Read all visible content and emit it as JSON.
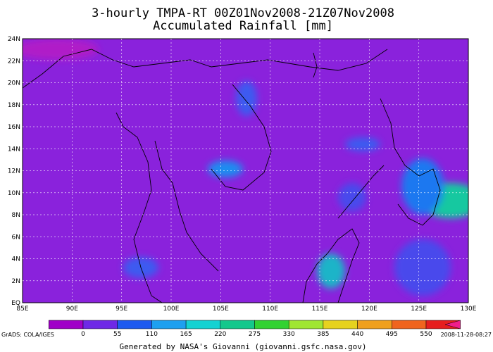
{
  "title": [
    "3-hourly TMPA-RT 00Z01Nov2008-21Z07Nov2008",
    "Accumulated Rainfall [mm]"
  ],
  "map": {
    "lat_labels": [
      "EQ",
      "2N",
      "4N",
      "6N",
      "8N",
      "10N",
      "12N",
      "14N",
      "16N",
      "18N",
      "20N",
      "22N",
      "24N"
    ],
    "lon_labels": [
      "85E",
      "90E",
      "95E",
      "100E",
      "105E",
      "110E",
      "115E",
      "120E",
      "125E",
      "130E"
    ],
    "background": "#8a22dc"
  },
  "colorbar": {
    "ticks": [
      0,
      55,
      110,
      165,
      220,
      275,
      330,
      385,
      440,
      495,
      550
    ],
    "colors": [
      "#d21ed2",
      "#a000c8",
      "#6e28e6",
      "#1e5af0",
      "#1ea0f0",
      "#14d2d2",
      "#14c88c",
      "#32d232",
      "#a0e632",
      "#e6d21e",
      "#f0a01e",
      "#f0641e",
      "#e61e1e",
      "#f01e8c"
    ]
  },
  "footer": {
    "left": "GrADS: COLA/IGES",
    "center": "Generated by NASA's Giovanni (giovanni.gsfc.nasa.gov)",
    "right": "2008-11-28-08:27"
  }
}
